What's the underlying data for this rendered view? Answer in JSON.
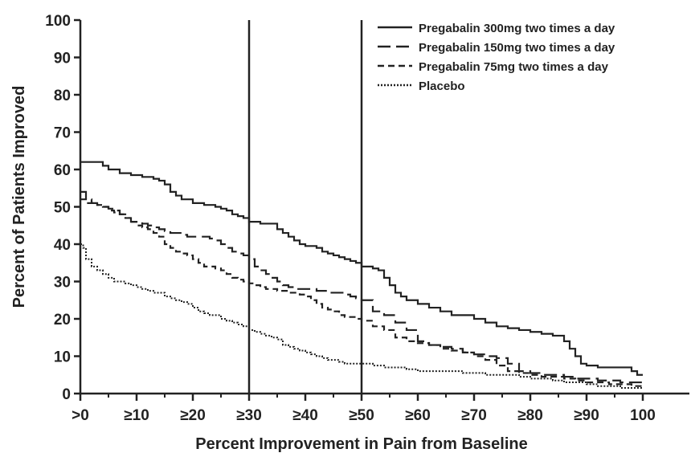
{
  "chart_data": {
    "type": "line",
    "title": "",
    "xlabel": "Percent Improvement in Pain from Baseline",
    "ylabel": "Percent of Patients Improved",
    "xlim": [
      0,
      100
    ],
    "ylim": [
      0,
      100
    ],
    "x_tick_labels": [
      ">0",
      "≥10",
      "≥20",
      "≥30",
      "≥40",
      "≥50",
      "≥60",
      "≥70",
      "≥80",
      "≥90",
      "100"
    ],
    "y_ticks": [
      0,
      10,
      20,
      30,
      40,
      50,
      60,
      70,
      80,
      90,
      100
    ],
    "reference_lines_x": [
      30,
      50
    ],
    "grid": false,
    "legend_position": "top-right",
    "series": [
      {
        "name": "Pregabalin 300mg two times a day",
        "style": "solid",
        "x": [
          0,
          1,
          2,
          3,
          4,
          5,
          6,
          7,
          8,
          9,
          10,
          11,
          12,
          13,
          14,
          15,
          16,
          17,
          18,
          19,
          20,
          21,
          22,
          23,
          24,
          25,
          26,
          27,
          28,
          29,
          30,
          31,
          32,
          33,
          34,
          35,
          36,
          37,
          38,
          39,
          40,
          41,
          42,
          43,
          44,
          45,
          46,
          47,
          48,
          49,
          50,
          51,
          52,
          53,
          54,
          55,
          56,
          57,
          58,
          59,
          60,
          62,
          64,
          66,
          68,
          70,
          72,
          74,
          76,
          78,
          80,
          82,
          84,
          86,
          87,
          88,
          89,
          90,
          92,
          94,
          96,
          98,
          99,
          100
        ],
        "y": [
          62,
          62,
          62,
          62,
          61,
          60,
          60,
          59,
          59,
          58.5,
          58.5,
          58,
          58,
          57.5,
          57,
          56,
          54,
          53,
          52,
          52,
          51,
          51,
          50.5,
          50.5,
          50,
          49.5,
          49,
          48,
          47.5,
          47,
          46,
          46,
          45.5,
          45.5,
          45.5,
          44,
          43,
          42,
          41,
          40,
          39.5,
          39.5,
          39,
          38,
          37.5,
          37,
          36.5,
          36,
          35.5,
          35,
          34,
          34,
          33.5,
          33,
          31,
          29,
          27,
          26,
          25,
          25,
          24,
          23,
          22,
          21,
          21,
          20,
          19,
          18,
          17.5,
          17,
          16.5,
          16,
          15.5,
          14,
          12,
          10,
          8,
          7.5,
          7,
          7,
          7,
          6,
          5,
          5
        ]
      },
      {
        "name": "Pregabalin 150mg two times a day",
        "style": "long-dash",
        "x": [
          0,
          1,
          2,
          3,
          4,
          5,
          6,
          7,
          8,
          9,
          10,
          11,
          12,
          13,
          14,
          15,
          16,
          17,
          18,
          19,
          20,
          21,
          22,
          23,
          24,
          25,
          26,
          27,
          28,
          29,
          30,
          31,
          32,
          33,
          34,
          35,
          36,
          37,
          38,
          39,
          40,
          41,
          42,
          43,
          44,
          45,
          46,
          47,
          48,
          49,
          50,
          52,
          54,
          56,
          58,
          60,
          62,
          64,
          66,
          68,
          70,
          72,
          74,
          76,
          78,
          80,
          82,
          84,
          86,
          88,
          90,
          92,
          94,
          96,
          98,
          100
        ],
        "y": [
          54,
          52,
          51,
          50.5,
          50,
          49.5,
          49,
          48,
          47,
          46,
          46,
          45.5,
          45,
          44.5,
          44,
          43.5,
          43,
          43,
          42.5,
          42,
          42,
          42,
          42,
          41.5,
          41,
          40,
          39,
          38,
          37.5,
          37,
          36,
          34,
          33,
          32,
          31,
          30,
          29,
          28.5,
          28,
          28,
          28,
          28,
          27.5,
          27.5,
          27,
          27,
          27,
          26.5,
          26,
          25.5,
          25,
          22,
          21,
          19,
          17,
          14,
          13,
          12.5,
          12,
          11,
          10.5,
          10,
          9.5,
          8,
          6,
          5.5,
          5,
          5,
          4.5,
          4,
          4,
          3.5,
          3.5,
          3,
          3,
          2.5
        ]
      },
      {
        "name": "Pregabalin 75mg two times a day",
        "style": "short-dash",
        "x": [
          0,
          1,
          2,
          3,
          4,
          5,
          6,
          7,
          8,
          9,
          10,
          11,
          12,
          13,
          14,
          15,
          16,
          17,
          18,
          19,
          20,
          21,
          22,
          23,
          24,
          25,
          26,
          27,
          28,
          29,
          30,
          31,
          32,
          33,
          34,
          35,
          36,
          37,
          38,
          39,
          40,
          41,
          42,
          43,
          44,
          45,
          46,
          47,
          48,
          49,
          50,
          52,
          54,
          56,
          58,
          60,
          62,
          64,
          66,
          68,
          70,
          72,
          74,
          76,
          78,
          80,
          82,
          84,
          86,
          88,
          90,
          92,
          94,
          96,
          98,
          100
        ],
        "y": [
          52,
          51,
          51,
          50.5,
          50,
          49,
          48.5,
          48,
          47,
          46,
          45,
          44.5,
          44,
          43,
          42,
          40,
          39,
          38,
          37.5,
          37,
          36,
          35,
          34,
          34,
          33.5,
          33,
          32,
          31,
          30.5,
          30,
          29.5,
          29,
          28.5,
          28,
          28,
          27.5,
          27.5,
          27,
          27,
          26.5,
          26,
          25,
          24,
          23,
          22.5,
          22,
          21,
          20.5,
          20.5,
          20,
          19.5,
          18,
          17,
          15,
          14,
          13.5,
          13,
          12,
          11.5,
          11,
          10,
          9,
          7.5,
          6,
          5.5,
          5,
          4.5,
          4.5,
          4,
          3.5,
          3,
          3,
          2.5,
          2.5,
          2,
          2
        ]
      },
      {
        "name": "Placebo",
        "style": "dotted",
        "x": [
          0,
          0.5,
          1,
          2,
          3,
          4,
          5,
          6,
          7,
          8,
          9,
          10,
          11,
          12,
          13,
          14,
          15,
          16,
          17,
          18,
          19,
          20,
          21,
          22,
          23,
          24,
          25,
          26,
          27,
          28,
          29,
          30,
          31,
          32,
          33,
          34,
          35,
          36,
          37,
          38,
          39,
          40,
          41,
          42,
          43,
          44,
          45,
          46,
          47,
          48,
          49,
          50,
          52,
          54,
          56,
          58,
          60,
          62,
          64,
          66,
          68,
          70,
          72,
          74,
          76,
          78,
          80,
          82,
          84,
          86,
          88,
          90,
          92,
          94,
          96,
          98,
          100
        ],
        "y": [
          40,
          39,
          36,
          34,
          33,
          32,
          31,
          30,
          30,
          29.5,
          29,
          28.5,
          28,
          27.5,
          27,
          27,
          26,
          25.5,
          25,
          24.5,
          24,
          23,
          22,
          21.5,
          21,
          21,
          20,
          19.5,
          19,
          18.5,
          18,
          17,
          16.5,
          16,
          15.5,
          15,
          14.5,
          13,
          12.5,
          12,
          11.5,
          11,
          10.5,
          10,
          9.5,
          9,
          9,
          8.5,
          8,
          8,
          8,
          8,
          7.5,
          7,
          7,
          6.5,
          6,
          6,
          6,
          6,
          5.5,
          5.5,
          5,
          5,
          5,
          4.5,
          4,
          4,
          3.5,
          3,
          3,
          2.5,
          2,
          2,
          1.5,
          1.5,
          1.5
        ]
      }
    ]
  }
}
